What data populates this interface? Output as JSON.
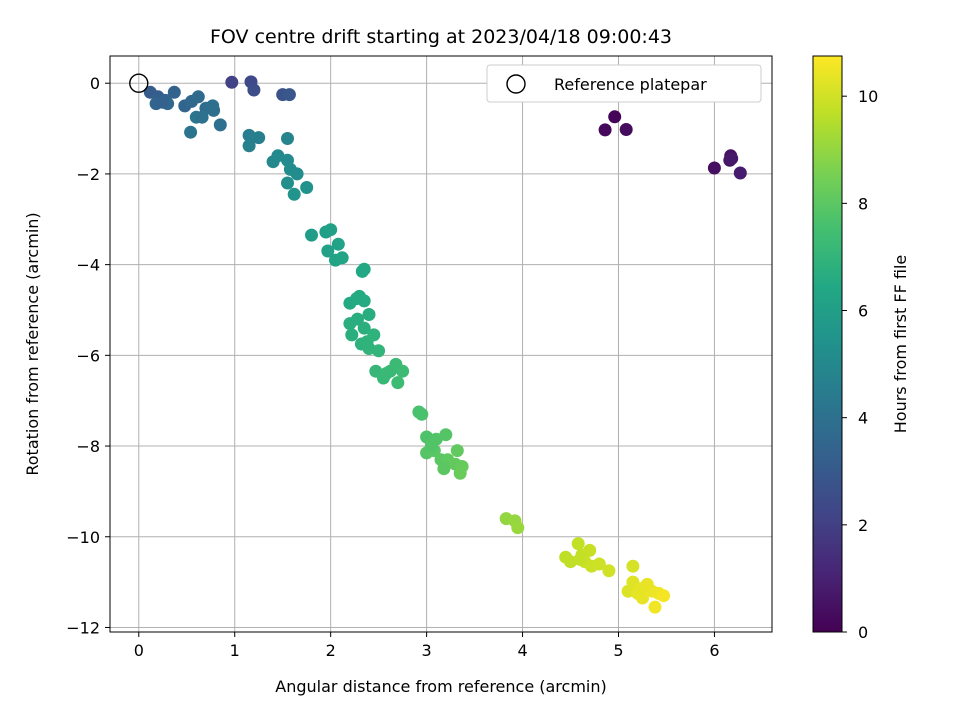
{
  "chart_data": {
    "type": "scatter",
    "title": "FOV centre drift starting at 2023/04/18 09:00:43",
    "xlabel": "Angular distance from reference (arcmin)",
    "ylabel": "Rotation from reference (arcmin)",
    "colorbar_label": "Hours from first FF file",
    "xlim": [
      -0.3,
      6.6
    ],
    "ylim": [
      -12.1,
      0.6
    ],
    "xticks": [
      0,
      1,
      2,
      3,
      4,
      5,
      6
    ],
    "yticks": [
      0,
      -2,
      -4,
      -6,
      -8,
      -10,
      -12
    ],
    "colorbar_range": [
      0,
      10.75
    ],
    "colorbar_ticks": [
      0,
      2,
      4,
      6,
      8,
      10
    ],
    "colormap": "viridis",
    "grid": true,
    "legend": {
      "position": "top-right",
      "entries": [
        "Reference platepar"
      ]
    },
    "reference_point": {
      "x": 0,
      "y": 0,
      "marker": "open-circle"
    },
    "points": [
      [
        4.96,
        -0.74,
        0.1
      ],
      [
        4.86,
        -1.03,
        0.2
      ],
      [
        5.08,
        -1.02,
        0.3
      ],
      [
        6.0,
        -1.87,
        0.4
      ],
      [
        6.17,
        -1.6,
        0.5
      ],
      [
        6.16,
        -1.7,
        0.6
      ],
      [
        6.18,
        -1.66,
        0.7
      ],
      [
        6.27,
        -1.98,
        0.8
      ],
      [
        0.97,
        0.02,
        2.1
      ],
      [
        1.17,
        0.03,
        2.3
      ],
      [
        1.2,
        -0.15,
        2.5
      ],
      [
        1.5,
        -0.25,
        2.7
      ],
      [
        1.57,
        -0.25,
        2.9
      ],
      [
        0.12,
        -0.2,
        3.1
      ],
      [
        0.2,
        -0.3,
        3.2
      ],
      [
        0.28,
        -0.38,
        3.3
      ],
      [
        0.37,
        -0.2,
        3.4
      ],
      [
        0.48,
        -0.5,
        3.5
      ],
      [
        0.55,
        -0.4,
        3.6
      ],
      [
        0.62,
        -0.3,
        3.7
      ],
      [
        0.7,
        -0.55,
        3.8
      ],
      [
        0.78,
        -0.6,
        3.9
      ],
      [
        0.85,
        -0.92,
        4.0
      ],
      [
        0.54,
        -1.08,
        4.1
      ],
      [
        0.6,
        -0.75,
        4.2
      ],
      [
        0.18,
        -0.45,
        3.5
      ],
      [
        0.3,
        -0.45,
        3.6
      ],
      [
        0.77,
        -0.5,
        3.9
      ],
      [
        0.66,
        -0.75,
        4.0
      ],
      [
        0.25,
        -0.42,
        3.3
      ],
      [
        1.15,
        -1.15,
        4.5
      ],
      [
        1.25,
        -1.2,
        4.6
      ],
      [
        1.15,
        -1.38,
        4.7
      ],
      [
        1.55,
        -1.22,
        4.8
      ],
      [
        1.4,
        -1.73,
        5.0
      ],
      [
        1.45,
        -1.6,
        5.05
      ],
      [
        1.55,
        -1.7,
        5.1
      ],
      [
        1.65,
        -2.0,
        5.2
      ],
      [
        1.55,
        -2.2,
        5.3
      ],
      [
        1.75,
        -2.3,
        5.4
      ],
      [
        1.62,
        -2.45,
        5.5
      ],
      [
        1.58,
        -1.9,
        5.2
      ],
      [
        1.8,
        -3.35,
        5.9
      ],
      [
        1.95,
        -3.28,
        6.0
      ],
      [
        2.0,
        -3.23,
        6.05
      ],
      [
        1.97,
        -3.7,
        6.1
      ],
      [
        2.08,
        -3.55,
        6.15
      ],
      [
        2.05,
        -3.9,
        6.2
      ],
      [
        2.12,
        -3.85,
        6.3
      ],
      [
        2.35,
        -4.1,
        6.4
      ],
      [
        2.33,
        -4.15,
        6.45
      ],
      [
        2.2,
        -4.85,
        6.5
      ],
      [
        2.3,
        -4.7,
        6.55
      ],
      [
        2.35,
        -4.8,
        6.6
      ],
      [
        2.4,
        -5.1,
        6.65
      ],
      [
        2.2,
        -5.3,
        6.7
      ],
      [
        2.28,
        -5.2,
        6.72
      ],
      [
        2.22,
        -5.55,
        6.75
      ],
      [
        2.35,
        -5.4,
        6.8
      ],
      [
        2.32,
        -5.75,
        6.85
      ],
      [
        2.45,
        -5.55,
        6.9
      ],
      [
        2.4,
        -5.85,
        6.95
      ],
      [
        2.5,
        -5.9,
        7.0
      ],
      [
        2.27,
        -4.75,
        6.55
      ],
      [
        2.38,
        -5.7,
        6.9
      ],
      [
        2.47,
        -6.35,
        7.1
      ],
      [
        2.55,
        -6.5,
        7.15
      ],
      [
        2.62,
        -6.35,
        7.2
      ],
      [
        2.68,
        -6.2,
        7.25
      ],
      [
        2.75,
        -6.35,
        7.3
      ],
      [
        2.7,
        -6.6,
        7.35
      ],
      [
        2.58,
        -6.4,
        7.2
      ],
      [
        2.92,
        -7.25,
        7.6
      ],
      [
        2.95,
        -7.3,
        7.65
      ],
      [
        3.0,
        -7.8,
        7.7
      ],
      [
        3.05,
        -7.95,
        7.75
      ],
      [
        3.1,
        -7.85,
        7.8
      ],
      [
        3.2,
        -7.75,
        7.85
      ],
      [
        3.0,
        -8.15,
        7.9
      ],
      [
        3.08,
        -8.1,
        7.95
      ],
      [
        3.15,
        -8.3,
        8.0
      ],
      [
        3.22,
        -8.3,
        8.05
      ],
      [
        3.32,
        -8.1,
        8.1
      ],
      [
        3.3,
        -8.4,
        8.15
      ],
      [
        3.37,
        -8.45,
        8.2
      ],
      [
        3.35,
        -8.6,
        8.25
      ],
      [
        3.18,
        -8.5,
        8.0
      ],
      [
        3.05,
        -8.0,
        7.8
      ],
      [
        3.83,
        -9.6,
        9.0
      ],
      [
        3.92,
        -9.65,
        9.05
      ],
      [
        3.95,
        -9.8,
        9.1
      ],
      [
        4.45,
        -10.45,
        9.7
      ],
      [
        4.5,
        -10.55,
        9.72
      ],
      [
        4.58,
        -10.15,
        9.75
      ],
      [
        4.62,
        -10.4,
        9.8
      ],
      [
        4.7,
        -10.3,
        9.85
      ],
      [
        4.65,
        -10.55,
        9.88
      ],
      [
        4.72,
        -10.65,
        9.9
      ],
      [
        4.8,
        -10.6,
        9.95
      ],
      [
        4.9,
        -10.75,
        10.0
      ],
      [
        4.6,
        -10.5,
        9.8
      ],
      [
        5.15,
        -10.65,
        10.1
      ],
      [
        5.1,
        -11.2,
        10.2
      ],
      [
        5.15,
        -11.0,
        10.25
      ],
      [
        5.22,
        -11.15,
        10.3
      ],
      [
        5.28,
        -11.1,
        10.35
      ],
      [
        5.25,
        -11.35,
        10.4
      ],
      [
        5.35,
        -11.2,
        10.45
      ],
      [
        5.42,
        -11.25,
        10.5
      ],
      [
        5.38,
        -11.55,
        10.55
      ],
      [
        5.47,
        -11.3,
        10.6
      ],
      [
        5.2,
        -11.25,
        10.35
      ],
      [
        5.3,
        -11.05,
        10.4
      ]
    ]
  }
}
